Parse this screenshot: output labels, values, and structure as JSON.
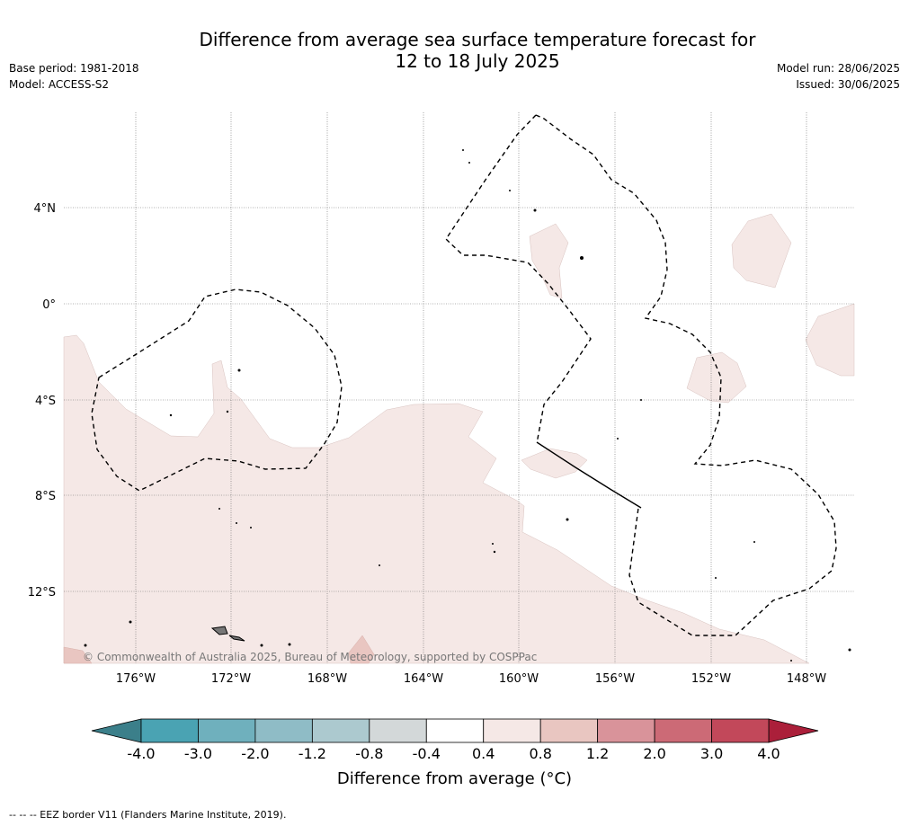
{
  "title_line1": "Difference from average sea surface temperature forecast for",
  "title_line2": "12 to 18 July 2025",
  "base_period": "Base period: 1981-2018",
  "model": "Model: ACCESS-S2",
  "model_run": "Model run: 28/06/2025",
  "issued": "Issued: 30/06/2025",
  "copyright": "© Commonwealth of Australia 2025, Bureau of Meteorology, supported by COSPPac",
  "lat_labels": [
    "4°N",
    "0°",
    "4°S",
    "8°S",
    "12°S"
  ],
  "lon_labels": [
    "176°W",
    "172°W",
    "168°W",
    "164°W",
    "160°W",
    "156°W",
    "152°W",
    "148°W"
  ],
  "colorbar": {
    "title": "Difference from average (°C)",
    "ticks": [
      "-4.0",
      "-3.0",
      "-2.0",
      "-1.2",
      "-0.8",
      "-0.4",
      "0.4",
      "0.8",
      "1.2",
      "2.0",
      "3.0",
      "4.0"
    ],
    "colors": [
      "#4aa3b3",
      "#6fb0bd",
      "#8fbcc6",
      "#acc9cf",
      "#d3d8d9",
      "#ffffff",
      "#f5e8e6",
      "#e9c6c1",
      "#d9939a",
      "#cc6a76",
      "#c2485a"
    ],
    "under_color": "#3b7f8a",
    "over_color": "#ab1f3a"
  },
  "anomaly_colors": {
    "light_warm": "#f5e8e6",
    "warm": "#e9c6c1"
  },
  "footer": "-- -- -- EEZ border V11 (Flanders Marine Institute, 2019)."
}
